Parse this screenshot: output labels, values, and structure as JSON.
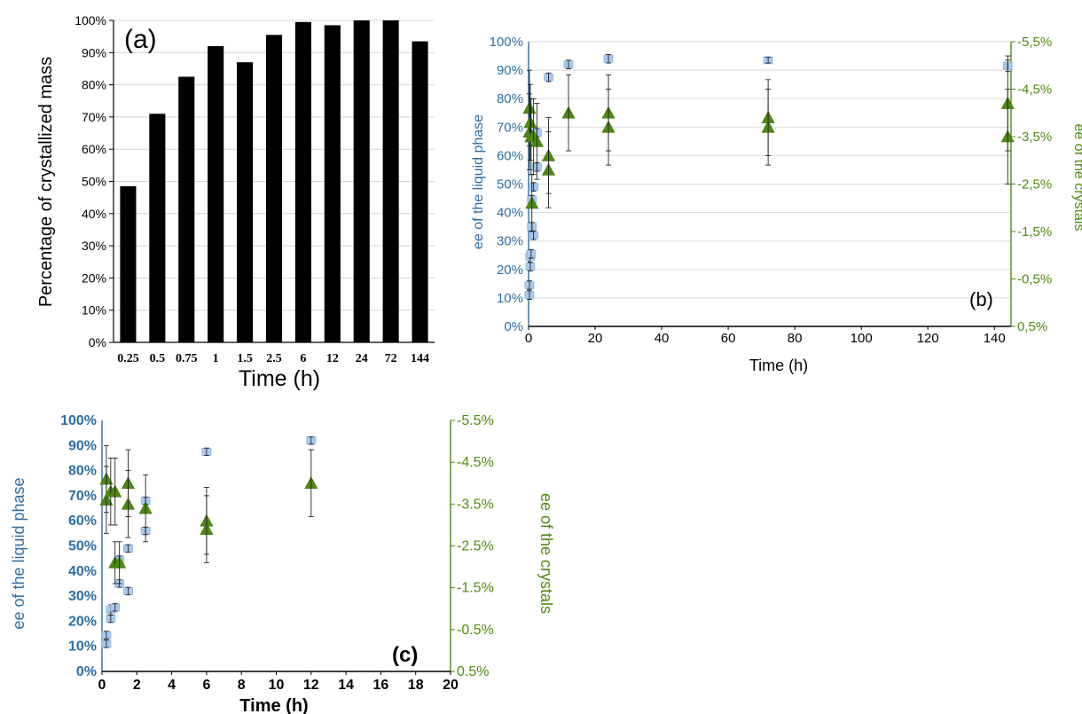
{
  "chart_data": [
    {
      "id": "a",
      "type": "bar",
      "panel_label": "(a)",
      "xlabel": "Time (h)",
      "ylabel": "Percentage of crystallized mass",
      "ylim": [
        0,
        100
      ],
      "yticks": [
        "0%",
        "10%",
        "20%",
        "30%",
        "40%",
        "50%",
        "60%",
        "70%",
        "80%",
        "90%",
        "100%"
      ],
      "categories": [
        "0.25",
        "0.5",
        "0.75",
        "1",
        "1.5",
        "2.5",
        "6",
        "12",
        "24",
        "72",
        "144"
      ],
      "values": [
        48.5,
        71,
        82.5,
        92,
        87,
        95.5,
        99.5,
        98.5,
        100,
        100,
        93.5
      ],
      "bar_color": "#000000",
      "grid": true
    },
    {
      "id": "b",
      "type": "scatter",
      "panel_label": "(b)",
      "xlabel": "Time (h)",
      "ylabel": "ee of the liquid phase",
      "y2label": "ee of the crystals",
      "xlim": [
        0,
        145
      ],
      "xticks": [
        "0",
        "20",
        "40",
        "60",
        "80",
        "100",
        "120",
        "140"
      ],
      "ylim": [
        0,
        100
      ],
      "yticks": [
        "0%",
        "10%",
        "20%",
        "30%",
        "40%",
        "50%",
        "60%",
        "70%",
        "80%",
        "90%",
        "100%"
      ],
      "y2lim": [
        0.5,
        -5.5
      ],
      "y2ticks": [
        "0,5%",
        "-0,5%",
        "-1,5%",
        "-2,5%",
        "-3,5%",
        "-4,5%",
        "-5,5%"
      ],
      "grid": true,
      "liquid_color": "#2e6da4",
      "crystal_color": "#4f8a10",
      "series": [
        {
          "marker": "square",
          "axis": "left",
          "points": [
            [
              0.25,
              11,
              1.5
            ],
            [
              0.25,
              14.5,
              1.5
            ],
            [
              0.5,
              21,
              1.5
            ],
            [
              0.5,
              24.5,
              2
            ],
            [
              0.75,
              25.5,
              1.5
            ],
            [
              1,
              35,
              1.5
            ],
            [
              1,
              44.5,
              1.5
            ],
            [
              1.5,
              32,
              1.5
            ],
            [
              1.5,
              49,
              1.5
            ],
            [
              2.5,
              56,
              1.5
            ],
            [
              2.5,
              68,
              1.5
            ],
            [
              6,
              87.5,
              1.5
            ],
            [
              12,
              92,
              1.5
            ],
            [
              24,
              94,
              1.5
            ],
            [
              72,
              93.5,
              1
            ],
            [
              144,
              91.5,
              2
            ]
          ]
        },
        {
          "marker": "triangle",
          "axis": "right",
          "points": [
            [
              0.25,
              -4.1,
              0.8
            ],
            [
              0.25,
              -3.6,
              0.8
            ],
            [
              0.5,
              -3.8,
              0.8
            ],
            [
              0.75,
              -3.5,
              0.8
            ],
            [
              1,
              -2.1,
              0.6
            ],
            [
              1.5,
              -3.5,
              0.8
            ],
            [
              2.5,
              -3.4,
              0.8
            ],
            [
              6,
              -3.1,
              0.8
            ],
            [
              6,
              -2.8,
              0.8
            ],
            [
              12,
              -4.0,
              0.8
            ],
            [
              24,
              -4.0,
              0.8
            ],
            [
              24,
              -3.7,
              0.8
            ],
            [
              72,
              -3.9,
              0.8
            ],
            [
              72,
              -3.7,
              0.8
            ],
            [
              144,
              -4.2,
              1.0
            ],
            [
              144,
              -3.5,
              1.0
            ]
          ]
        }
      ]
    },
    {
      "id": "c",
      "type": "scatter",
      "panel_label": "(c)",
      "xlabel": "Time (h)",
      "ylabel": "ee of the liquid phase",
      "y2label": "ee of the crystals",
      "xlim": [
        0,
        20
      ],
      "xticks": [
        "0",
        "2",
        "4",
        "6",
        "8",
        "10",
        "12",
        "14",
        "16",
        "18",
        "20"
      ],
      "ylim": [
        0,
        100
      ],
      "yticks": [
        "0%",
        "10%",
        "20%",
        "30%",
        "40%",
        "50%",
        "60%",
        "70%",
        "80%",
        "90%",
        "100%"
      ],
      "y2lim": [
        0.5,
        -5.5
      ],
      "y2ticks": [
        "0.5%",
        "-0.5%",
        "-1.5%",
        "-2.5%",
        "-3.5%",
        "-4.5%",
        "-5.5%"
      ],
      "grid": false,
      "liquid_color": "#2e6da4",
      "crystal_color": "#4f8a10",
      "series": [
        {
          "marker": "square",
          "axis": "left",
          "points": [
            [
              0.25,
              11,
              1.5
            ],
            [
              0.25,
              14.5,
              1.5
            ],
            [
              0.5,
              21,
              1.5
            ],
            [
              0.5,
              24.5,
              2
            ],
            [
              0.75,
              25.5,
              1.5
            ],
            [
              1,
              35,
              1.5
            ],
            [
              1,
              44.5,
              1.5
            ],
            [
              1.5,
              32,
              1.5
            ],
            [
              1.5,
              49,
              1.5
            ],
            [
              2.5,
              56,
              1.5
            ],
            [
              2.5,
              68,
              1.5
            ],
            [
              6,
              87.5,
              1.5
            ],
            [
              12,
              92,
              1.5
            ]
          ]
        },
        {
          "marker": "triangle",
          "axis": "right",
          "points": [
            [
              0.25,
              -4.1,
              0.8
            ],
            [
              0.25,
              -3.6,
              0.8
            ],
            [
              0.5,
              -3.8,
              0.8
            ],
            [
              0.75,
              -3.8,
              0.8
            ],
            [
              0.75,
              -2.1,
              0.5
            ],
            [
              1,
              -2.1,
              0.5
            ],
            [
              1.5,
              -4.0,
              0.8
            ],
            [
              1.5,
              -3.5,
              0.8
            ],
            [
              2.5,
              -3.4,
              0.8
            ],
            [
              6,
              -3.1,
              0.8
            ],
            [
              6,
              -2.9,
              0.8
            ],
            [
              12,
              -4.0,
              0.8
            ]
          ]
        }
      ]
    }
  ]
}
